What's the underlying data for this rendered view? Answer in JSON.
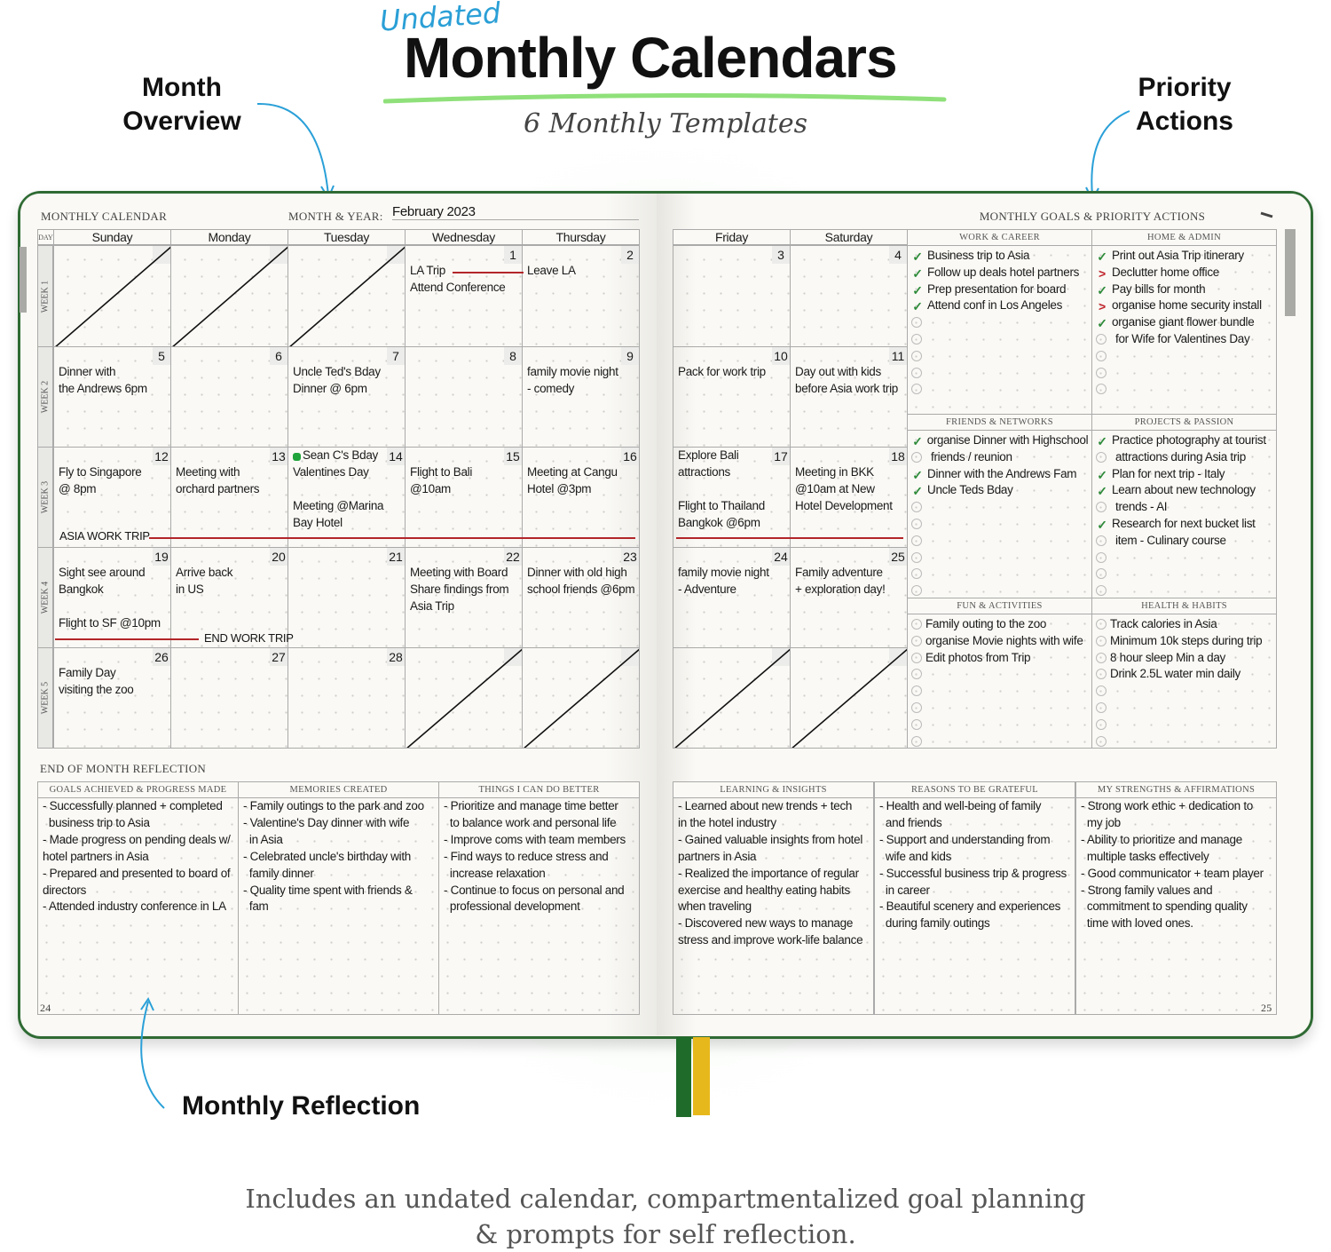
{
  "header": {
    "kicker": "Undated",
    "title": "Monthly Calendars",
    "subtitle": "6 Monthly Templates"
  },
  "callouts": {
    "month_overview": [
      "Month",
      "Overview"
    ],
    "priority_actions": [
      "Priority",
      "Actions"
    ],
    "monthly_reflection": "Monthly Reflection"
  },
  "caption": [
    "Includes an undated calendar, compartmentalized goal planning",
    "& prompts for self reflection."
  ],
  "colors": {
    "brand_green": "#2f6b34",
    "accent_blue": "#2aa0d8",
    "check_green": "#2e8b3a",
    "deferred_red": "#c0222a",
    "ribbon_green": "#1e6b2a",
    "ribbon_yellow": "#e7b81c"
  },
  "left_page": {
    "heading": "MONTHLY CALENDAR",
    "month_label": "MONTH & YEAR:",
    "month_value": "February 2023",
    "day_label": "DAY",
    "page_number": "24"
  },
  "right_page": {
    "heading": "MONTHLY GOALS & PRIORITY ACTIONS",
    "page_number": "25",
    "corner_icon": "pen-icon"
  },
  "calendar": {
    "days": [
      "Sunday",
      "Monday",
      "Tuesday",
      "Wednesday",
      "Thursday",
      "Friday",
      "Saturday"
    ],
    "weeks": [
      {
        "label": "WEEK 1",
        "cells": [
          {
            "crossed": true
          },
          {
            "crossed": true
          },
          {
            "crossed": true
          },
          {
            "date": "1",
            "lines": [
              "",
              "LA Trip",
              "Attend Conference"
            ]
          },
          {
            "date": "2",
            "lines": [
              "",
              "Leave LA"
            ]
          },
          {
            "date": "3",
            "lines": []
          },
          {
            "date": "4",
            "lines": []
          }
        ]
      },
      {
        "label": "WEEK 2",
        "cells": [
          {
            "date": "5",
            "lines": [
              "",
              "Dinner with",
              "the Andrews 6pm"
            ]
          },
          {
            "date": "6",
            "lines": []
          },
          {
            "date": "7",
            "lines": [
              "",
              "Uncle Ted's Bday",
              "Dinner @ 6pm"
            ]
          },
          {
            "date": "8",
            "lines": []
          },
          {
            "date": "9",
            "lines": [
              "",
              "family movie night",
              "- comedy"
            ]
          },
          {
            "date": "10",
            "lines": [
              "",
              "Pack for work trip"
            ]
          },
          {
            "date": "11",
            "lines": [
              "",
              "Day out with kids",
              "before Asia work trip"
            ]
          }
        ]
      },
      {
        "label": "WEEK 3",
        "cells": [
          {
            "date": "12",
            "lines": [
              "",
              "Fly to Singapore",
              "@ 8pm"
            ]
          },
          {
            "date": "13",
            "lines": [
              "",
              "Meeting with",
              "orchard partners"
            ]
          },
          {
            "date": "14",
            "marker": "green-dot",
            "lines": [
              "Sean C's Bday",
              "Valentines Day",
              "",
              "Meeting @Marina",
              "Bay Hotel"
            ]
          },
          {
            "date": "15",
            "lines": [
              "",
              "Flight to Bali",
              "@10am"
            ]
          },
          {
            "date": "16",
            "lines": [
              "",
              "Meeting at Cangu",
              "Hotel @3pm"
            ]
          },
          {
            "date": "17",
            "lines": [
              "Explore Bali",
              "attractions",
              "",
              "Flight to Thailand",
              "Bangkok @6pm"
            ]
          },
          {
            "date": "18",
            "lines": [
              "",
              "Meeting in BKK",
              "@10am at New",
              "Hotel Development"
            ]
          }
        ]
      },
      {
        "label": "WEEK 4",
        "cells": [
          {
            "date": "19",
            "lines": [
              "",
              "Sight see around",
              "Bangkok",
              "",
              "Flight to SF @10pm"
            ]
          },
          {
            "date": "20",
            "lines": [
              "",
              "Arrive back",
              "in US"
            ]
          },
          {
            "date": "21",
            "lines": []
          },
          {
            "date": "22",
            "lines": [
              "",
              "Meeting with Board",
              "Share findings from",
              "Asia Trip"
            ]
          },
          {
            "date": "23",
            "lines": [
              "",
              "Dinner with old high",
              "school friends @6pm"
            ]
          },
          {
            "date": "24",
            "lines": [
              "",
              "family movie night",
              "- Adventure"
            ]
          },
          {
            "date": "25",
            "lines": [
              "",
              "Family adventure",
              "+ exploration day!"
            ]
          }
        ]
      },
      {
        "label": "WEEK 5",
        "cells": [
          {
            "date": "26",
            "lines": [
              "",
              "Family Day",
              "visiting the zoo"
            ]
          },
          {
            "date": "27",
            "lines": []
          },
          {
            "date": "28",
            "lines": []
          },
          {
            "crossed": true
          },
          {
            "crossed": true
          },
          {
            "crossed": true
          },
          {
            "crossed": true
          }
        ]
      }
    ],
    "trips": {
      "asia_start": "ASIA WORK TRIP",
      "asia_end": "END WORK TRIP"
    }
  },
  "goals": [
    {
      "title": "WORK & CAREER",
      "items": [
        {
          "text": "Business trip to Asia",
          "status": "done"
        },
        {
          "text": "Follow up deals hotel partners",
          "status": "done"
        },
        {
          "text": "Prep presentation for board",
          "status": "done"
        },
        {
          "text": "Attend conf in Los Angeles",
          "status": "done"
        },
        {
          "text": "",
          "status": "open"
        },
        {
          "text": "",
          "status": "open"
        },
        {
          "text": "",
          "status": "open"
        },
        {
          "text": "",
          "status": "open"
        },
        {
          "text": "",
          "status": "open"
        }
      ]
    },
    {
      "title": "HOME & ADMIN",
      "items": [
        {
          "text": "Print out Asia Trip itinerary",
          "status": "done"
        },
        {
          "text": "Declutter home office",
          "status": "deferred"
        },
        {
          "text": "Pay bills for month",
          "status": "done"
        },
        {
          "text": "organise home security install",
          "status": "deferred"
        },
        {
          "text": "organise giant flower bundle",
          "status": "done"
        },
        {
          "text": "for Wife for Valentines Day",
          "status": "open",
          "continuation": true
        },
        {
          "text": "",
          "status": "open"
        },
        {
          "text": "",
          "status": "open"
        },
        {
          "text": "",
          "status": "open"
        }
      ]
    },
    {
      "title": "FRIENDS & NETWORKS",
      "items": [
        {
          "text": "organise Dinner with Highschool",
          "status": "done"
        },
        {
          "text": "friends / reunion",
          "status": "open",
          "continuation": true
        },
        {
          "text": "Dinner with the Andrews Fam",
          "status": "done"
        },
        {
          "text": "Uncle Teds Bday",
          "status": "done"
        },
        {
          "text": "",
          "status": "open"
        },
        {
          "text": "",
          "status": "open"
        },
        {
          "text": "",
          "status": "open"
        },
        {
          "text": "",
          "status": "open"
        },
        {
          "text": "",
          "status": "open"
        },
        {
          "text": "",
          "status": "open"
        }
      ]
    },
    {
      "title": "PROJECTS & PASSION",
      "items": [
        {
          "text": "Practice photography at tourist",
          "status": "done"
        },
        {
          "text": "attractions during Asia trip",
          "status": "open",
          "continuation": true
        },
        {
          "text": "Plan for next trip - Italy",
          "status": "done"
        },
        {
          "text": "Learn about new technology",
          "status": "done"
        },
        {
          "text": "trends - AI",
          "status": "open",
          "continuation": true
        },
        {
          "text": "Research for next bucket list",
          "status": "done"
        },
        {
          "text": "item - Culinary course",
          "status": "open",
          "continuation": true
        },
        {
          "text": "",
          "status": "open"
        },
        {
          "text": "",
          "status": "open"
        },
        {
          "text": "",
          "status": "open"
        }
      ]
    },
    {
      "title": "FUN & ACTIVITIES",
      "items": [
        {
          "text": "Family outing to the zoo",
          "status": "open"
        },
        {
          "text": "organise Movie nights with wife",
          "status": "open"
        },
        {
          "text": "Edit photos from Trip",
          "status": "open"
        },
        {
          "text": "",
          "status": "open"
        },
        {
          "text": "",
          "status": "open"
        },
        {
          "text": "",
          "status": "open"
        },
        {
          "text": "",
          "status": "open"
        },
        {
          "text": "",
          "status": "open"
        }
      ]
    },
    {
      "title": "HEALTH & HABITS",
      "items": [
        {
          "text": "Track calories in Asia",
          "status": "open"
        },
        {
          "text": "Minimum 10k steps during trip",
          "status": "open"
        },
        {
          "text": "8 hour sleep Min a day",
          "status": "open"
        },
        {
          "text": "Drink 2.5L water min daily",
          "status": "open"
        },
        {
          "text": "",
          "status": "open"
        },
        {
          "text": "",
          "status": "open"
        },
        {
          "text": "",
          "status": "open"
        },
        {
          "text": "",
          "status": "open"
        }
      ]
    }
  ],
  "reflection": {
    "heading": "END OF MONTH REFLECTION",
    "sections": [
      {
        "title": "GOALS ACHIEVED & PROGRESS MADE",
        "lines": [
          "- Successfully planned + completed",
          "  business trip to Asia",
          "- Made progress on pending deals w/",
          "hotel partners in Asia",
          "- Prepared and presented to board of",
          "directors",
          "- Attended industry conference in LA"
        ]
      },
      {
        "title": "MEMORIES CREATED",
        "lines": [
          "- Family outings to the park and zoo",
          "- Valentine's Day dinner with wife",
          "  in Asia",
          "- Celebrated uncle's birthday with",
          "  family dinner",
          "- Quality time spent with friends &",
          "  fam"
        ]
      },
      {
        "title": "THINGS I CAN DO BETTER",
        "lines": [
          "- Prioritize and manage time better",
          "  to balance work and personal life",
          "- Improve coms with team members",
          "- Find ways to reduce stress and",
          "  increase relaxation",
          "- Continue to focus on personal and",
          "  professional development"
        ]
      },
      {
        "title": "LEARNING & INSIGHTS",
        "lines": [
          "- Learned about new trends + tech",
          "in the hotel industry",
          "- Gained valuable insights from hotel",
          "partners in Asia",
          "- Realized the importance of regular",
          "exercise and healthy eating habits",
          "when traveling",
          "- Discovered new ways to manage",
          "stress and improve work-life balance"
        ]
      },
      {
        "title": "REASONS TO BE GRATEFUL",
        "lines": [
          "- Health and well-being of family",
          "  and friends",
          "- Support and understanding from",
          "  wife and kids",
          "- Successful business trip & progress",
          "  in career",
          "- Beautiful scenery and experiences",
          "  during family outings"
        ]
      },
      {
        "title": "MY STRENGTHS & AFFIRMATIONS",
        "lines": [
          "- Strong work ethic + dedication to",
          "  my job",
          "- Ability to prioritize and manage",
          "  multiple tasks effectively",
          "- Good communicator + team player",
          "- Strong family values and",
          "  commitment to spending quality",
          "  time with loved ones."
        ]
      }
    ]
  }
}
